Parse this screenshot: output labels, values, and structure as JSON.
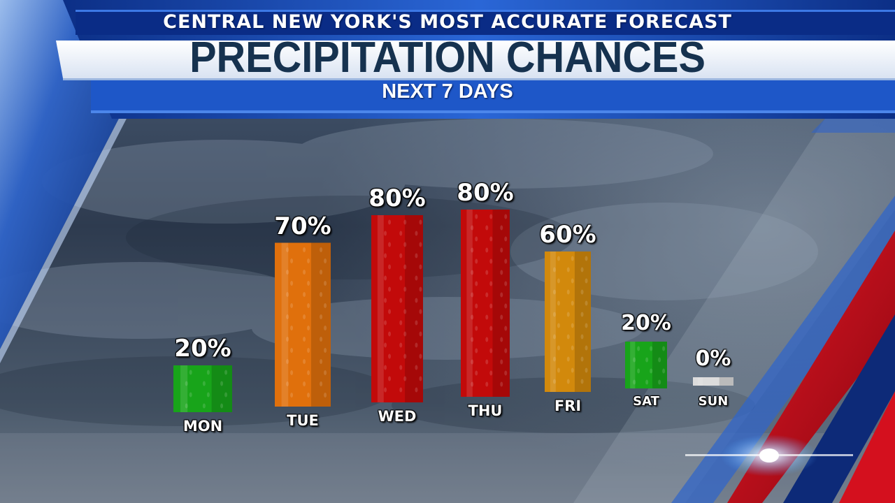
{
  "header": {
    "subtitle": "CENTRAL NEW YORK'S MOST ACCURATE FORECAST",
    "title": "PRECIPITATION CHANCES",
    "period": "NEXT 7 DAYS"
  },
  "colors": {
    "green": "#18a41a",
    "orange": "#e0700c",
    "red": "#c20a0a",
    "gold": "#d2890c",
    "gray": "#dcdcdc",
    "title_bar": "#ffffff",
    "band_blue": "#1a4fb8",
    "accent_red": "#d4101e"
  },
  "chart_data": {
    "type": "bar",
    "title": "PRECIPITATION CHANCES",
    "subtitle": "NEXT 7 DAYS",
    "xlabel": "",
    "ylabel": "",
    "unit": "%",
    "ylim": [
      0,
      100
    ],
    "grid": false,
    "categories": [
      "MON",
      "TUE",
      "WED",
      "THU",
      "FRI",
      "SAT",
      "SUN"
    ],
    "values": [
      20,
      70,
      80,
      80,
      60,
      20,
      0
    ],
    "value_labels": [
      "20%",
      "70%",
      "80%",
      "80%",
      "60%",
      "20%",
      "0%"
    ],
    "bar_colors": [
      "green",
      "orange",
      "red",
      "red",
      "gold",
      "green",
      "gray"
    ]
  }
}
